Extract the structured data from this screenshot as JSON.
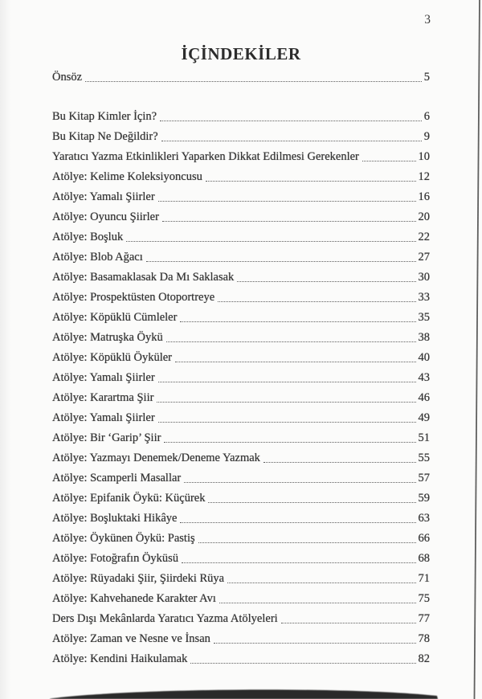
{
  "page": {
    "number": "3",
    "title": "İÇİNDEKİLER"
  },
  "toc": {
    "entries": [
      {
        "label": "Önsöz",
        "page": "5",
        "gap_before": false
      },
      {
        "label": "Bu Kitap Kimler İçin?",
        "page": "6",
        "gap_before": true
      },
      {
        "label": "Bu Kitap Ne Değildir?",
        "page": "9",
        "gap_before": false
      },
      {
        "label": "Yaratıcı Yazma Etkinlikleri Yaparken Dikkat Edilmesi Gerekenler",
        "page": "10",
        "gap_before": false
      },
      {
        "label": "Atölye: Kelime Koleksiyoncusu",
        "page": "12",
        "gap_before": false
      },
      {
        "label": "Atölye: Yamalı Şiirler",
        "page": "16",
        "gap_before": false
      },
      {
        "label": "Atölye: Oyuncu Şiirler",
        "page": "20",
        "gap_before": false
      },
      {
        "label": "Atölye: Boşluk",
        "page": "22",
        "gap_before": false
      },
      {
        "label": "Atölye: Blob Ağacı",
        "page": "27",
        "gap_before": false
      },
      {
        "label": "Atölye: Basamaklasak Da Mı Saklasak",
        "page": "30",
        "gap_before": false
      },
      {
        "label": "Atölye: Prospektüsten Otoportreye",
        "page": "33",
        "gap_before": false
      },
      {
        "label": "Atölye: Köpüklü Cümleler",
        "page": "35",
        "gap_before": false
      },
      {
        "label": "Atölye: Matruşka Öykü",
        "page": "38",
        "gap_before": false
      },
      {
        "label": "Atölye: Köpüklü Öyküler",
        "page": "40",
        "gap_before": false
      },
      {
        "label": "Atölye: Yamalı Şiirler",
        "page": "43",
        "gap_before": false
      },
      {
        "label": "Atölye: Karartma Şiir",
        "page": "46",
        "gap_before": false
      },
      {
        "label": "Atölye: Yamalı Şiirler",
        "page": "49",
        "gap_before": false
      },
      {
        "label": "Atölye: Bir ‘Garip’ Şiir",
        "page": "51",
        "gap_before": false
      },
      {
        "label": "Atölye: Yazmayı Denemek/Deneme Yazmak",
        "page": "55",
        "gap_before": false
      },
      {
        "label": "Atölye: Scamperli Masallar",
        "page": "57",
        "gap_before": false
      },
      {
        "label": "Atölye: Epifanik Öykü: Küçürek",
        "page": "59",
        "gap_before": false
      },
      {
        "label": "Atölye: Boşluktaki Hikâye",
        "page": "63",
        "gap_before": false
      },
      {
        "label": "Atölye: Öykünen Öykü: Pastiş",
        "page": "66",
        "gap_before": false
      },
      {
        "label": "Atölye: Fotoğrafın Öyküsü",
        "page": "68",
        "gap_before": false
      },
      {
        "label": "Atölye: Rüyadaki Şiir, Şiirdeki Rüya",
        "page": "71",
        "gap_before": false
      },
      {
        "label": "Atölye: Kahvehanede Karakter Avı",
        "page": "75",
        "gap_before": false
      },
      {
        "label": "Ders Dışı Mekânlarda Yaratıcı Yazma Atölyeleri",
        "page": "77",
        "gap_before": false
      },
      {
        "label": "Atölye: Zaman ve Nesne ve İnsan",
        "page": "78",
        "gap_before": false
      },
      {
        "label": "Atölye: Kendini Haikulamak",
        "page": "82",
        "gap_before": false
      }
    ]
  },
  "colors": {
    "background": "#fbfbfa",
    "text": "#343434",
    "dots": "#5d5d5d",
    "page_edge_line": "#454545",
    "bottom_shadow": "#1f1f1f"
  }
}
